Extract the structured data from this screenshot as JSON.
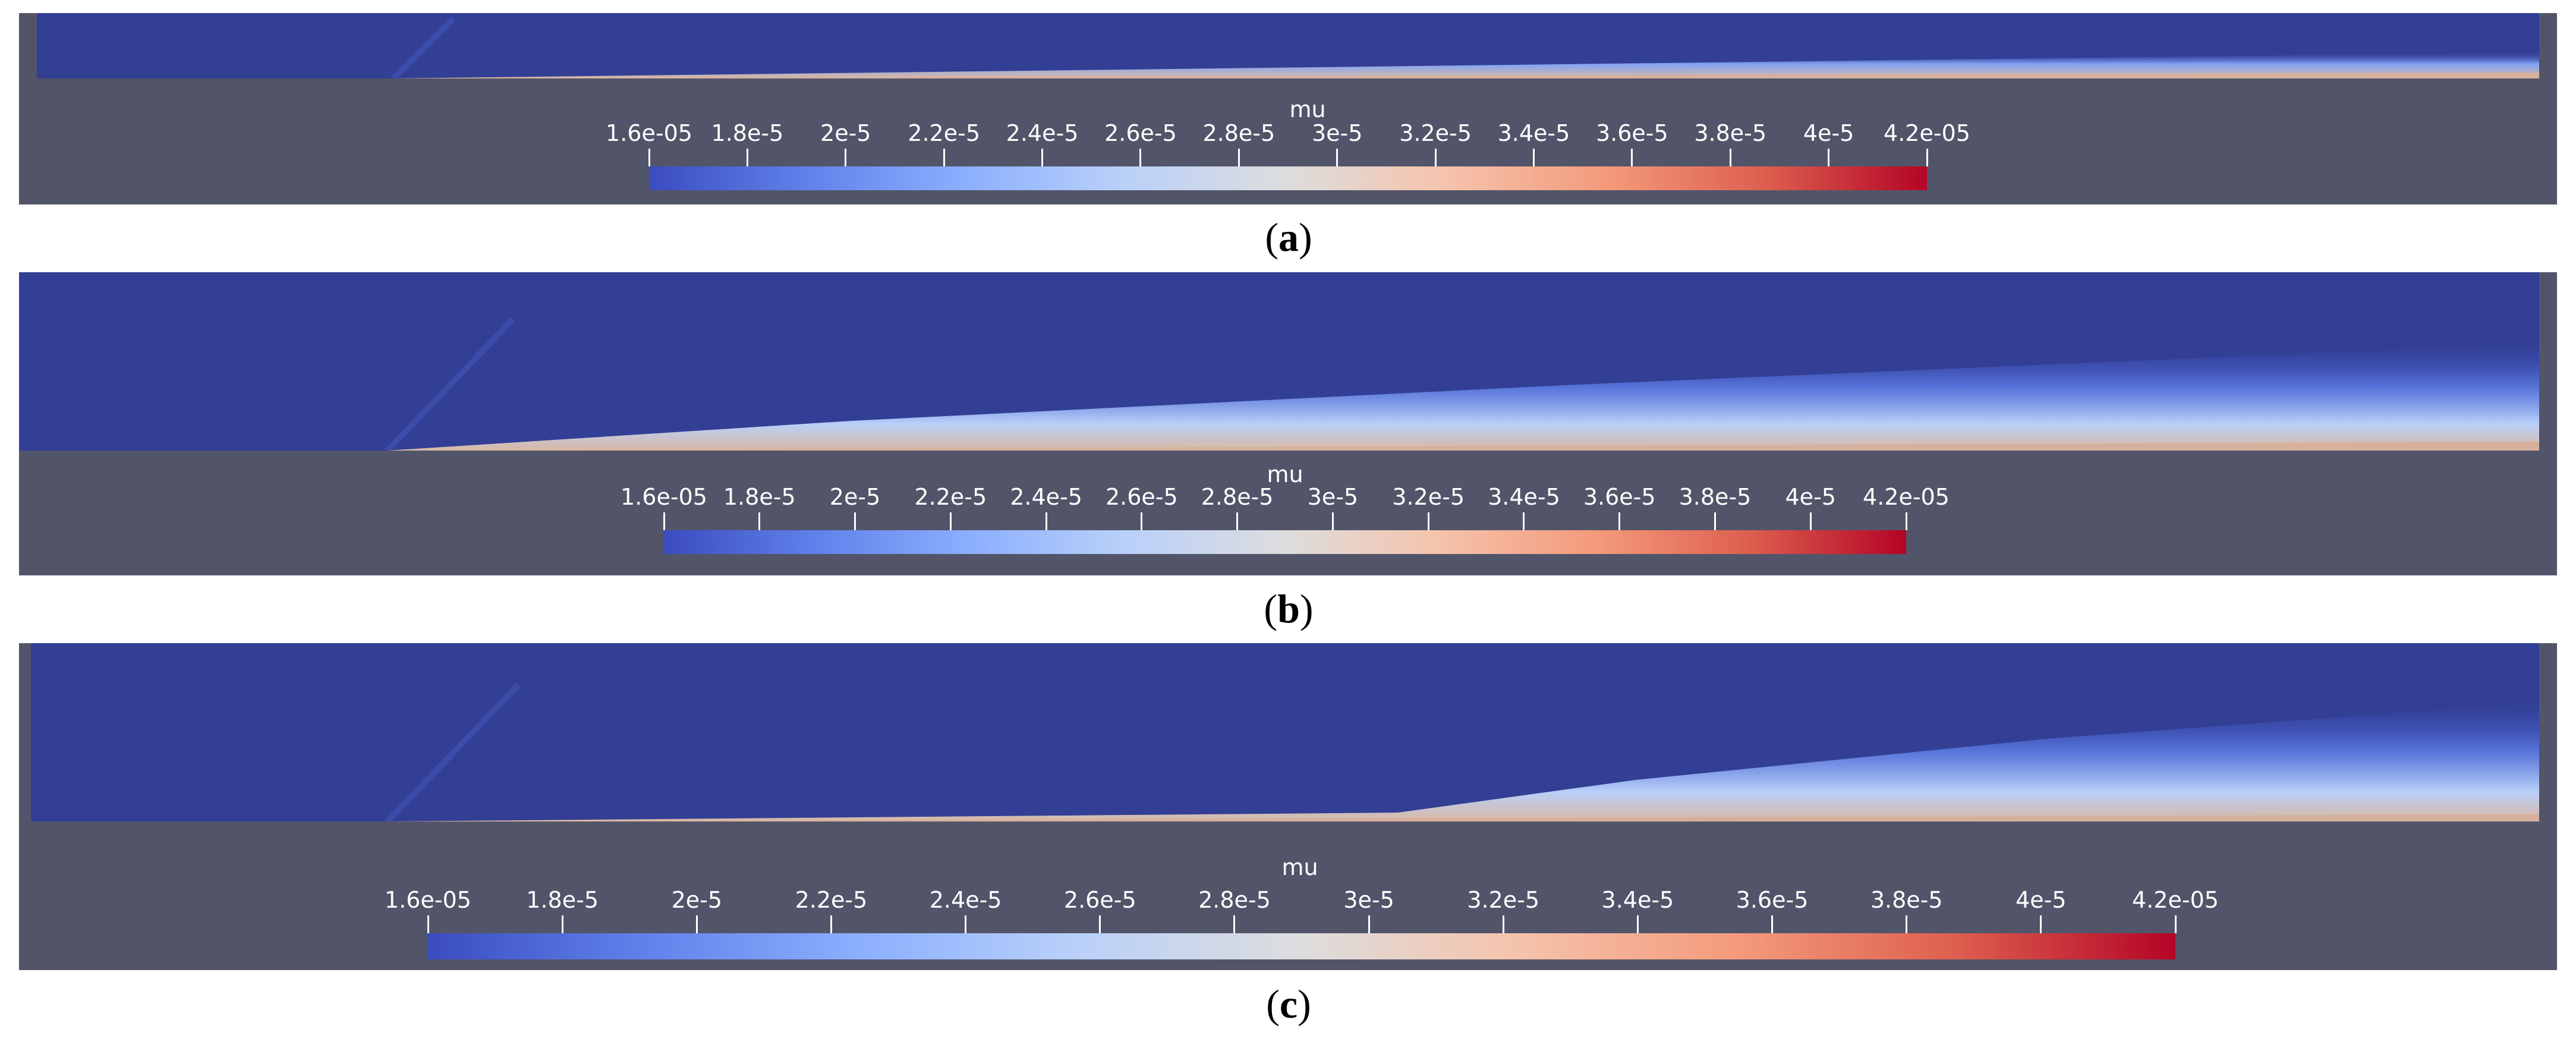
{
  "colors": {
    "background": "#525569",
    "field_base": "#323f94",
    "colormap": [
      "#3b4cc0",
      "#5f80ea",
      "#8db0fe",
      "#b9d0f9",
      "#dddddd",
      "#f5c4ad",
      "#f49a7b",
      "#de6150",
      "#b40426"
    ]
  },
  "panels": [
    {
      "id": "a",
      "caption": "a",
      "legend": {
        "title": "mu",
        "range": [
          1.6e-05,
          4.2e-05
        ],
        "tick_values": [
          1.6e-05,
          1.8e-05,
          2e-05,
          2.2e-05,
          2.4e-05,
          2.6e-05,
          2.8e-05,
          3e-05,
          3.2e-05,
          3.4e-05,
          3.6e-05,
          3.8e-05,
          4e-05,
          4.2e-05
        ],
        "tick_labels": [
          "1.6e-05",
          "1.8e-5",
          "2e-5",
          "2.2e-5",
          "2.4e-5",
          "2.6e-5",
          "2.8e-5",
          "3e-5",
          "3.2e-5",
          "3.4e-5",
          "3.6e-5",
          "3.8e-5",
          "4e-5",
          "4.2e-05"
        ]
      }
    },
    {
      "id": "b",
      "caption": "b",
      "legend": {
        "title": "mu",
        "range": [
          1.6e-05,
          4.2e-05
        ],
        "tick_values": [
          1.6e-05,
          1.8e-05,
          2e-05,
          2.2e-05,
          2.4e-05,
          2.6e-05,
          2.8e-05,
          3e-05,
          3.2e-05,
          3.4e-05,
          3.6e-05,
          3.8e-05,
          4e-05,
          4.2e-05
        ],
        "tick_labels": [
          "1.6e-05",
          "1.8e-5",
          "2e-5",
          "2.2e-5",
          "2.4e-5",
          "2.6e-5",
          "2.8e-5",
          "3e-5",
          "3.2e-5",
          "3.4e-5",
          "3.6e-5",
          "3.8e-5",
          "4e-5",
          "4.2e-05"
        ]
      }
    },
    {
      "id": "c",
      "caption": "c",
      "legend": {
        "title": "mu",
        "range": [
          1.6e-05,
          4.2e-05
        ],
        "tick_values": [
          1.6e-05,
          1.8e-05,
          2e-05,
          2.2e-05,
          2.4e-05,
          2.6e-05,
          2.8e-05,
          3e-05,
          3.2e-05,
          3.4e-05,
          3.6e-05,
          3.8e-05,
          4e-05,
          4.2e-05
        ],
        "tick_labels": [
          "1.6e-05",
          "1.8e-5",
          "2e-5",
          "2.2e-5",
          "2.4e-5",
          "2.6e-5",
          "2.8e-5",
          "3e-5",
          "3.2e-5",
          "3.4e-5",
          "3.6e-5",
          "3.8e-5",
          "4e-5",
          "4.2e-05"
        ]
      }
    }
  ]
}
